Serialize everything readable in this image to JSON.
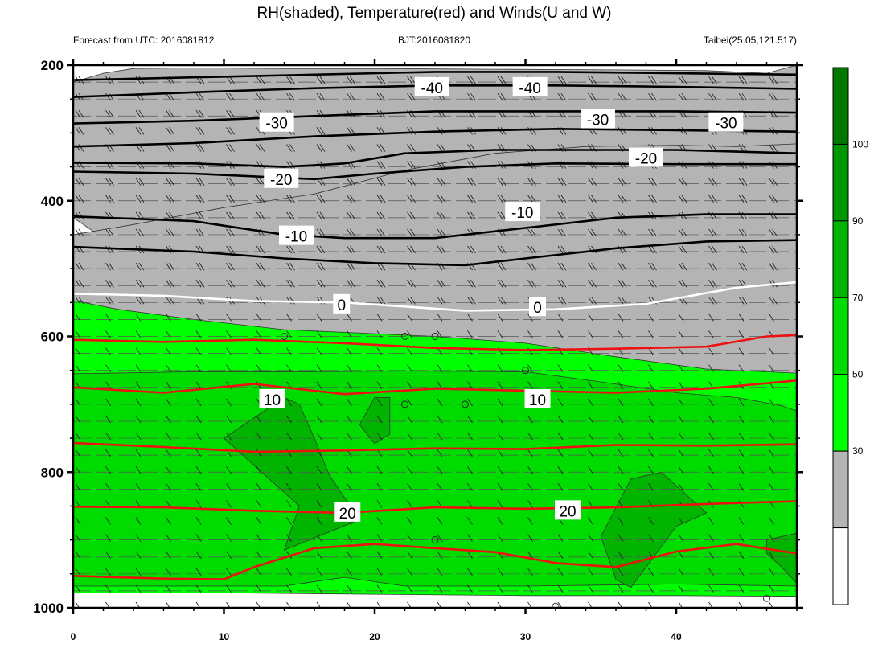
{
  "chart_data": {
    "type": "heatmap",
    "title": "RH(shaded), Temperature(red) and Winds(U and W)",
    "subtitle_left": "Forecast from UTC: 2016081812",
    "subtitle_center": "BJT:2016081820",
    "subtitle_right": "Taibei(25.05,121.517)",
    "xlabel": "",
    "ylabel": "",
    "xlim": [
      0,
      48
    ],
    "ylim": [
      1000,
      200
    ],
    "x_ticks": [
      "0",
      "10",
      "20",
      "30",
      "40"
    ],
    "y_ticks": [
      "200",
      "400",
      "600",
      "800",
      "1000"
    ],
    "colorbar": {
      "levels": [
        "30",
        "50",
        "70",
        "90",
        "100"
      ],
      "colors": [
        "#ffffff",
        "#b4b4b4",
        "#00ff00",
        "#00dc00",
        "#00b400",
        "#009600",
        "#007800"
      ]
    },
    "rh_bands": [
      {
        "min": 30,
        "color": "#b4b4b4",
        "top": [
          [
            0,
            225
          ],
          [
            2,
            212
          ],
          [
            4,
            205
          ],
          [
            8,
            204
          ],
          [
            14,
            205
          ],
          [
            20,
            205
          ],
          [
            28,
            206
          ],
          [
            36,
            207
          ],
          [
            42,
            208
          ],
          [
            46,
            212
          ],
          [
            48,
            200
          ]
        ],
        "bottom": [
          [
            0,
            425
          ],
          [
            3,
            470
          ],
          [
            8,
            490
          ],
          [
            14,
            500
          ],
          [
            20,
            505
          ],
          [
            28,
            500
          ],
          [
            34,
            480
          ],
          [
            40,
            470
          ],
          [
            44,
            470
          ],
          [
            48,
            470
          ]
        ]
      },
      {
        "min": 30,
        "color": "#b4b4b4",
        "top": [
          [
            0,
            450
          ],
          [
            4,
            435
          ],
          [
            10,
            410
          ],
          [
            16,
            390
          ],
          [
            22,
            355
          ],
          [
            28,
            330
          ],
          [
            34,
            320
          ],
          [
            40,
            318
          ],
          [
            44,
            320
          ],
          [
            48,
            316
          ]
        ],
        "bottom": [
          [
            0,
            640
          ],
          [
            8,
            645
          ],
          [
            16,
            650
          ],
          [
            24,
            655
          ],
          [
            32,
            660
          ],
          [
            40,
            665
          ],
          [
            48,
            670
          ]
        ]
      },
      {
        "min": 50,
        "color": "#00ff00",
        "top": [
          [
            0,
            547
          ],
          [
            3,
            560
          ],
          [
            8,
            575
          ],
          [
            14,
            590
          ],
          [
            20,
            596
          ],
          [
            24,
            600
          ],
          [
            30,
            610
          ],
          [
            36,
            630
          ],
          [
            42,
            648
          ],
          [
            48,
            654
          ]
        ],
        "bottom": [
          [
            0,
            978
          ],
          [
            10,
            978
          ],
          [
            20,
            980
          ],
          [
            30,
            982
          ],
          [
            40,
            982
          ],
          [
            48,
            983
          ]
        ]
      },
      {
        "min": 70,
        "color": "#00dc00",
        "top": [
          [
            0,
            655
          ],
          [
            8,
            652
          ],
          [
            15,
            652
          ],
          [
            22,
            651
          ],
          [
            30,
            652
          ],
          [
            35,
            667
          ],
          [
            40,
            683
          ],
          [
            44,
            690
          ],
          [
            47,
            702
          ],
          [
            48,
            710
          ]
        ],
        "bottom": [
          [
            0,
            968
          ],
          [
            14,
            968
          ],
          [
            18,
            955
          ],
          [
            22,
            968
          ],
          [
            30,
            968
          ],
          [
            40,
            965
          ],
          [
            48,
            968
          ]
        ]
      },
      {
        "min": 90,
        "color": "#00b400",
        "top": [
          [
            14,
            690
          ],
          [
            10,
            750
          ],
          [
            13,
            810
          ],
          [
            15,
            850
          ],
          [
            14,
            915
          ],
          [
            19,
            870
          ],
          [
            17,
            805
          ],
          [
            16,
            750
          ],
          [
            15,
            700
          ]
        ],
        "bottom": []
      },
      {
        "min": 90,
        "color": "#00b400",
        "top": [
          [
            35,
            895
          ],
          [
            36,
            958
          ],
          [
            37,
            970
          ],
          [
            40,
            880
          ],
          [
            42,
            860
          ],
          [
            39,
            800
          ],
          [
            37,
            810
          ]
        ],
        "bottom": []
      },
      {
        "min": 90,
        "color": "#00b400",
        "top": [
          [
            46,
            900
          ],
          [
            48,
            890
          ],
          [
            48,
            964
          ],
          [
            47,
            940
          ],
          [
            46,
            920
          ]
        ],
        "bottom": []
      },
      {
        "min": 100,
        "color": "#00b400",
        "top": [
          [
            20,
            690
          ],
          [
            19,
            730
          ],
          [
            20,
            758
          ],
          [
            21,
            744
          ],
          [
            21,
            690
          ]
        ],
        "bottom": []
      }
    ],
    "temperature_isotherms_C": [
      {
        "level": "0",
        "points": [
          [
            0,
            537
          ],
          [
            6,
            540
          ],
          [
            12,
            548
          ],
          [
            18,
            550
          ],
          [
            26,
            562
          ],
          [
            32,
            560
          ],
          [
            38,
            552
          ],
          [
            44,
            528
          ],
          [
            48,
            520
          ]
        ]
      },
      {
        "level": "10",
        "points": [
          [
            0,
            675
          ],
          [
            6,
            683
          ],
          [
            12,
            670
          ],
          [
            18,
            685
          ],
          [
            24,
            677
          ],
          [
            30,
            680
          ],
          [
            36,
            683
          ],
          [
            42,
            677
          ],
          [
            48,
            665
          ]
        ]
      },
      {
        "level": "20",
        "points": [
          [
            0,
            851
          ],
          [
            6,
            852
          ],
          [
            12,
            857
          ],
          [
            18,
            860
          ],
          [
            24,
            852
          ],
          [
            30,
            854
          ],
          [
            36,
            852
          ],
          [
            42,
            847
          ],
          [
            48,
            843
          ]
        ]
      },
      {
        "level": "",
        "points": [
          [
            0,
            605
          ],
          [
            6,
            608
          ],
          [
            12,
            605
          ],
          [
            18,
            610
          ],
          [
            24,
            617
          ],
          [
            30,
            620
          ],
          [
            36,
            618
          ],
          [
            42,
            615
          ],
          [
            46,
            600
          ],
          [
            48,
            598
          ]
        ]
      },
      {
        "level": "",
        "points": [
          [
            0,
            757
          ],
          [
            6,
            763
          ],
          [
            12,
            770
          ],
          [
            18,
            768
          ],
          [
            24,
            765
          ],
          [
            30,
            766
          ],
          [
            36,
            760
          ],
          [
            42,
            761
          ],
          [
            48,
            759
          ]
        ]
      },
      {
        "level": "",
        "points": [
          [
            0,
            953
          ],
          [
            6,
            957
          ],
          [
            10,
            958
          ],
          [
            12,
            940
          ],
          [
            16,
            912
          ],
          [
            20,
            906
          ],
          [
            24,
            912
          ],
          [
            28,
            918
          ],
          [
            32,
            934
          ],
          [
            36,
            940
          ],
          [
            40,
            917
          ],
          [
            44,
            906
          ],
          [
            48,
            920
          ]
        ]
      }
    ],
    "black_isotherms_C": [
      {
        "level": "-40",
        "points": [
          [
            0,
            222
          ],
          [
            8,
            218
          ],
          [
            16,
            214
          ],
          [
            24,
            210
          ],
          [
            32,
            210
          ],
          [
            40,
            212
          ],
          [
            48,
            214
          ]
        ]
      },
      {
        "level": "-40",
        "points": [
          [
            0,
            247
          ],
          [
            8,
            240
          ],
          [
            16,
            234
          ],
          [
            24,
            230
          ],
          [
            32,
            230
          ],
          [
            40,
            232
          ],
          [
            48,
            235
          ]
        ]
      },
      {
        "level": "-30",
        "points": [
          [
            0,
            286
          ],
          [
            8,
            282
          ],
          [
            16,
            275
          ],
          [
            24,
            268
          ],
          [
            32,
            268
          ],
          [
            40,
            268
          ],
          [
            48,
            270
          ]
        ]
      },
      {
        "level": "-30",
        "points": [
          [
            0,
            320
          ],
          [
            8,
            315
          ],
          [
            16,
            305
          ],
          [
            24,
            298
          ],
          [
            32,
            294
          ],
          [
            40,
            296
          ],
          [
            48,
            298
          ]
        ]
      },
      {
        "level": "-20",
        "points": [
          [
            0,
            344
          ],
          [
            8,
            345
          ],
          [
            14,
            350
          ],
          [
            18,
            345
          ],
          [
            22,
            330
          ],
          [
            28,
            325
          ],
          [
            34,
            325
          ],
          [
            40,
            325
          ],
          [
            48,
            330
          ]
        ]
      },
      {
        "level": "-20",
        "points": [
          [
            0,
            357
          ],
          [
            8,
            360
          ],
          [
            16,
            368
          ],
          [
            20,
            360
          ],
          [
            26,
            350
          ],
          [
            32,
            345
          ],
          [
            40,
            346
          ],
          [
            48,
            346
          ]
        ]
      },
      {
        "level": "-10",
        "points": [
          [
            0,
            423
          ],
          [
            8,
            430
          ],
          [
            14,
            450
          ],
          [
            18,
            455
          ],
          [
            24,
            455
          ],
          [
            30,
            440
          ],
          [
            36,
            425
          ],
          [
            42,
            420
          ],
          [
            48,
            420
          ]
        ]
      },
      {
        "level": "-10",
        "points": [
          [
            0,
            468
          ],
          [
            8,
            475
          ],
          [
            14,
            485
          ],
          [
            20,
            492
          ],
          [
            26,
            495
          ],
          [
            30,
            485
          ],
          [
            36,
            470
          ],
          [
            42,
            460
          ],
          [
            48,
            458
          ]
        ]
      }
    ],
    "contour_labels": [
      {
        "text": "-40",
        "x": 23.8,
        "y": 233
      },
      {
        "text": "-40",
        "x": 30.3,
        "y": 233
      },
      {
        "text": "-30",
        "x": 13.5,
        "y": 285
      },
      {
        "text": "-30",
        "x": 34.8,
        "y": 280
      },
      {
        "text": "-30",
        "x": 43.3,
        "y": 285
      },
      {
        "text": "-20",
        "x": 38.0,
        "y": 337
      },
      {
        "text": "-20",
        "x": 13.8,
        "y": 368
      },
      {
        "text": "-10",
        "x": 29.8,
        "y": 417
      },
      {
        "text": "-10",
        "x": 14.8,
        "y": 452
      },
      {
        "text": "0",
        "x": 17.8,
        "y": 553
      },
      {
        "text": "0",
        "x": 30.8,
        "y": 557
      },
      {
        "text": "10",
        "x": 13.2,
        "y": 693
      },
      {
        "text": "10",
        "x": 30.8,
        "y": 693
      },
      {
        "text": "20",
        "x": 18.2,
        "y": 860
      },
      {
        "text": "20",
        "x": 32.8,
        "y": 857
      }
    ],
    "calm_circles": [
      [
        14,
        600
      ],
      [
        22,
        600
      ],
      [
        24,
        600
      ],
      [
        30,
        650
      ],
      [
        22,
        700
      ],
      [
        26,
        700
      ],
      [
        24,
        900
      ],
      [
        46,
        986
      ],
      [
        32,
        998
      ]
    ],
    "grid": true
  }
}
